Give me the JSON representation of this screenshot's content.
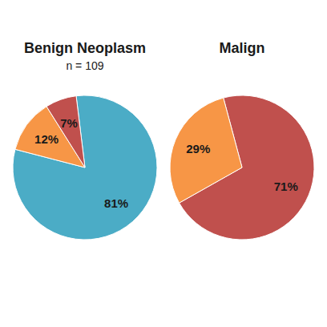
{
  "chart_data": [
    {
      "type": "pie",
      "title": "Benign Neoplasm",
      "subtitle": "n = 109",
      "values": [
        81,
        12,
        7
      ],
      "value_labels": [
        "81%",
        "12%",
        "7%"
      ],
      "colors": [
        "#4BACC6",
        "#F79646",
        "#C0504D"
      ],
      "data_labels": true
    },
    {
      "type": "pie",
      "title": "Malign",
      "values": [
        71,
        29
      ],
      "value_labels": [
        "71%",
        "29%"
      ],
      "colors": [
        "#C0504D",
        "#F79646"
      ],
      "data_labels": true
    }
  ]
}
